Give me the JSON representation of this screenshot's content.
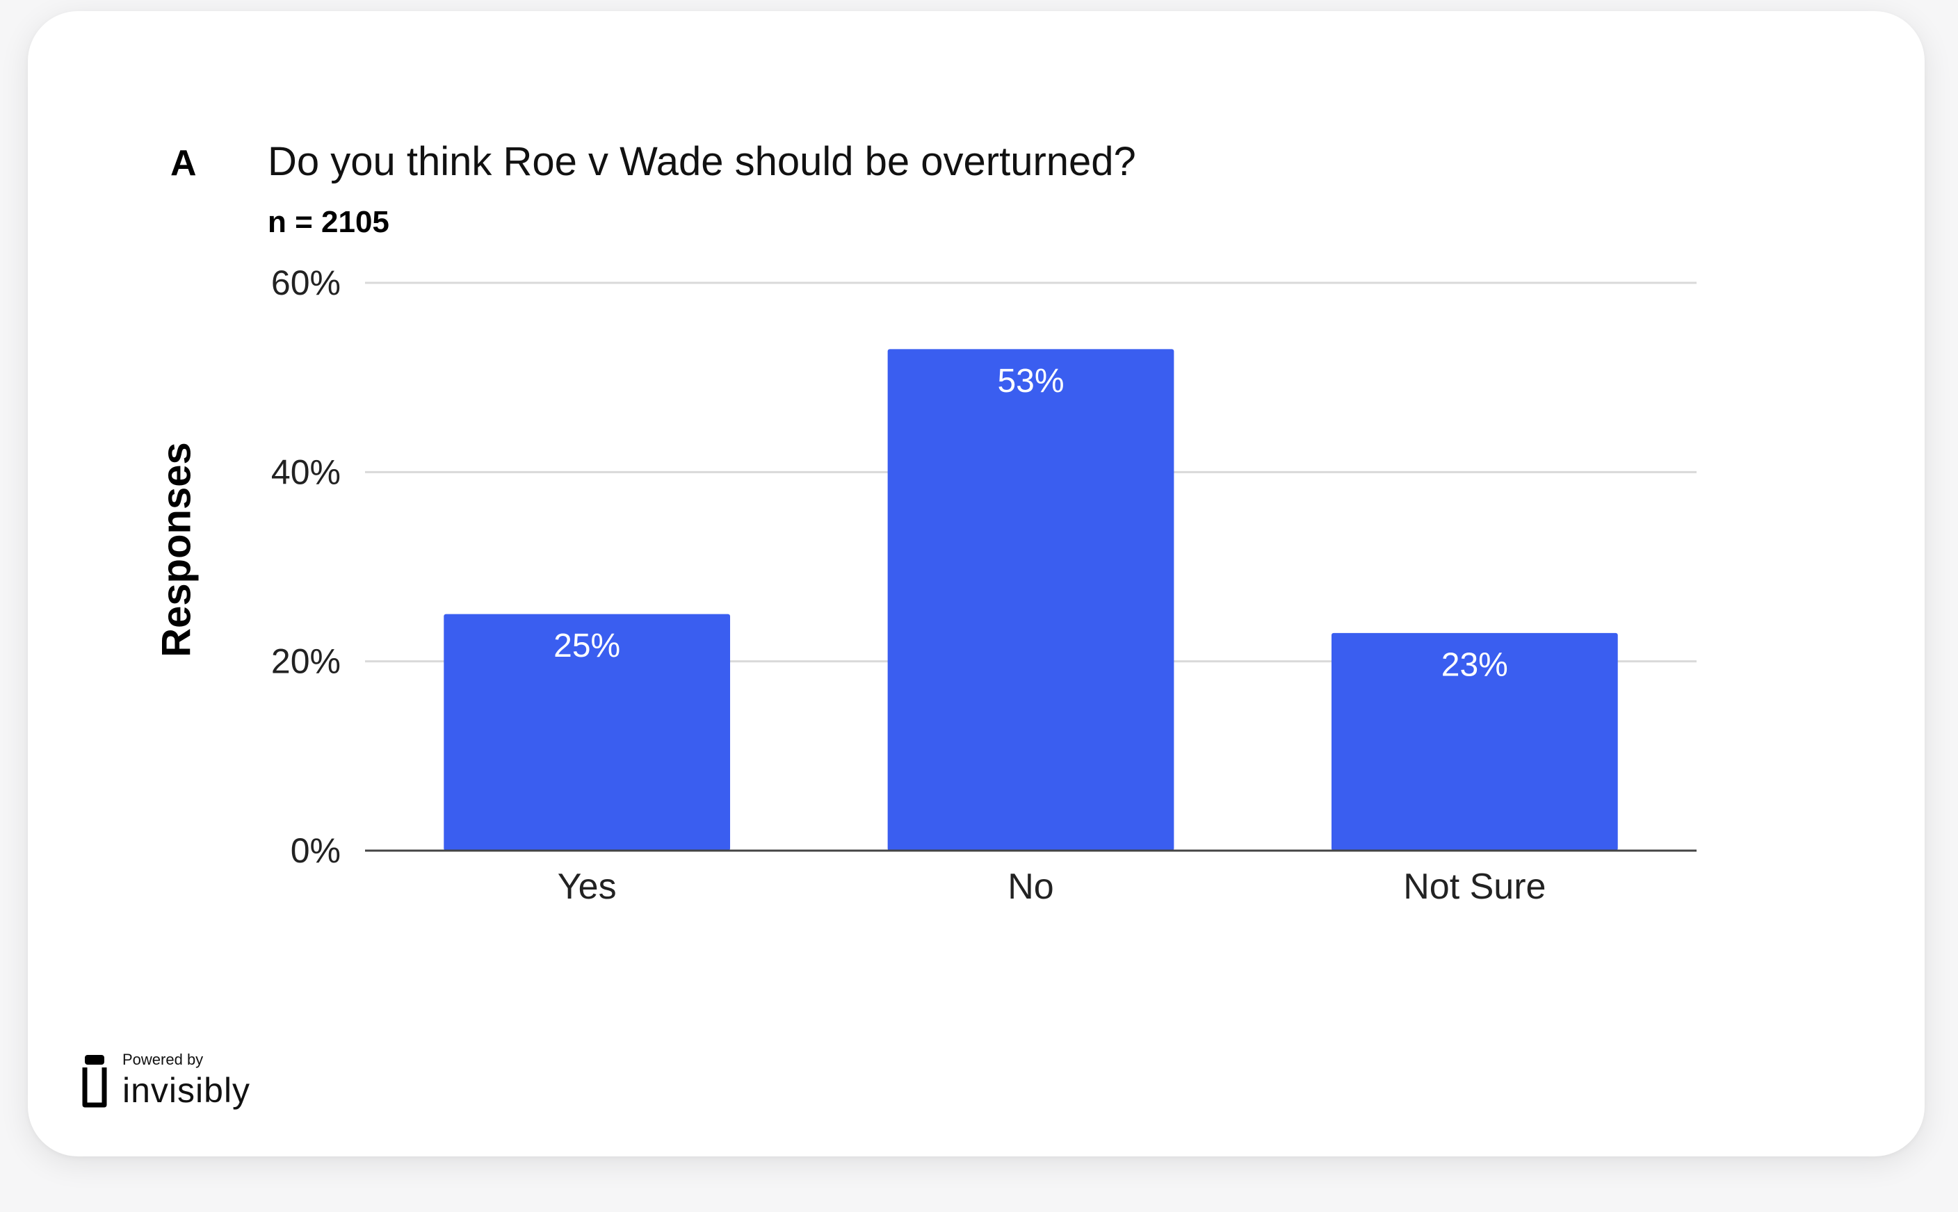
{
  "panel_letter": "A",
  "footer": {
    "powered_by": "Powered by",
    "brand": "invisibly"
  },
  "colors": {
    "bar": "#3a5ef0"
  },
  "chart_data": {
    "type": "bar",
    "title": "Do you think Roe v Wade should be overturned?",
    "subtitle": "n = 2105",
    "xlabel": "",
    "ylabel": "Responses",
    "categories": [
      "Yes",
      "No",
      "Not Sure"
    ],
    "values": [
      25,
      53,
      23
    ],
    "data_labels": [
      "25%",
      "53%",
      "23%"
    ],
    "ylim": [
      0,
      60
    ],
    "yticks": [
      0,
      20,
      40,
      60
    ],
    "ytick_labels": [
      "0%",
      "20%",
      "40%",
      "60%"
    ],
    "grid": true,
    "legend": "none"
  }
}
